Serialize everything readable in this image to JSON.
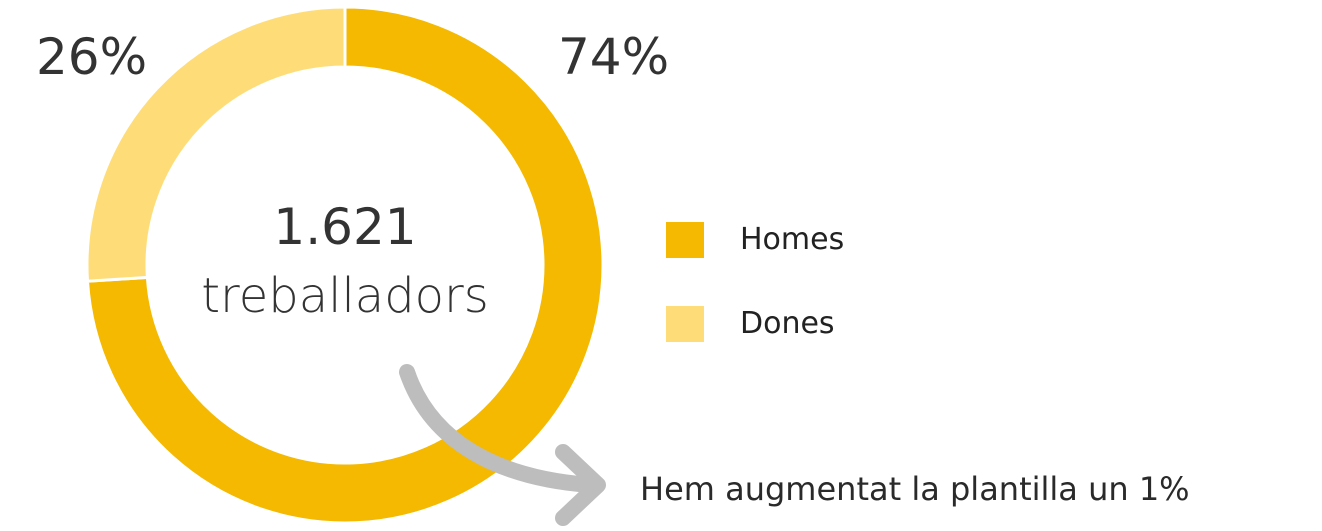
{
  "chart_data": {
    "type": "pie",
    "style": "donut",
    "categories": [
      "Homes",
      "Dones"
    ],
    "values": [
      74,
      26
    ],
    "labels": [
      "74%",
      "26%"
    ],
    "colors": [
      "#F4B900",
      "#FEDD79"
    ],
    "legend_position": "right",
    "center_value": "1.621",
    "center_label": "treballadors"
  },
  "annotation": {
    "text": "Hem augmentat la plantilla un 1%",
    "arrow_icon": "curved-arrow-icon",
    "arrow_color": "#BDBDBD"
  }
}
